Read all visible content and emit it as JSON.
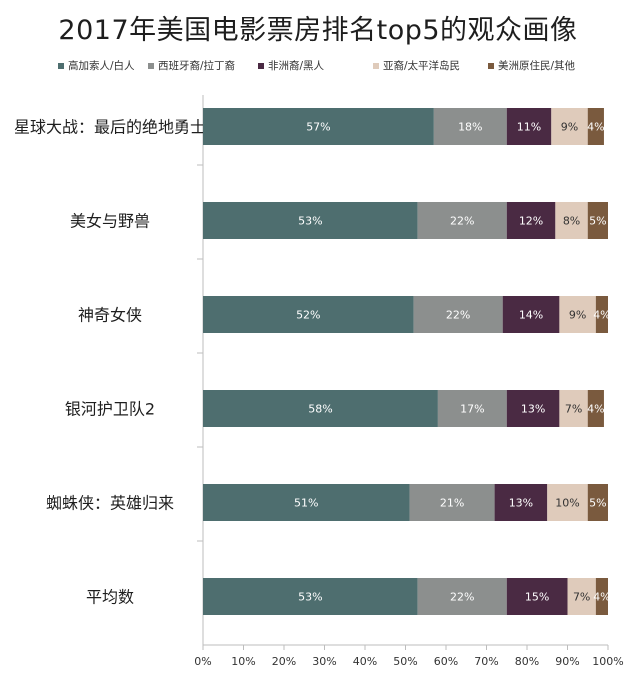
{
  "chart_data": {
    "type": "bar",
    "orientation": "horizontal",
    "stacked": true,
    "title": "2017年美国电影票房排名top5的观众画像",
    "categories": [
      "星球大战：最后的绝地勇士",
      "美女与野兽",
      "神奇女侠",
      "银河护卫队2",
      "蜘蛛侠：英雄归来",
      "平均数"
    ],
    "series": [
      {
        "name": "高加索人/白人",
        "color": "#4e6e6f",
        "values": [
          57,
          53,
          52,
          58,
          51,
          53
        ],
        "labels": [
          "57%",
          "53%",
          "52%",
          "58%",
          "51%",
          "53%"
        ]
      },
      {
        "name": "西班牙裔/拉丁裔",
        "color": "#8c8f8e",
        "values": [
          18,
          22,
          22,
          17,
          21,
          22
        ],
        "labels": [
          "18%",
          "22%",
          "22%",
          "17%",
          "21%",
          "22%"
        ]
      },
      {
        "name": "非洲裔/黑人",
        "color": "#4a2a43",
        "values": [
          11,
          12,
          14,
          13,
          13,
          15
        ],
        "labels": [
          "11%",
          "12%",
          "14%",
          "13%",
          "13%",
          "15%"
        ]
      },
      {
        "name": "亚裔/太平洋岛民",
        "color": "#dfcbbb",
        "values": [
          9,
          8,
          9,
          7,
          10,
          7
        ],
        "labels": [
          "9%",
          "8%",
          "9%",
          "7%",
          "10%",
          "7%"
        ]
      },
      {
        "name": "美洲原住民/其他",
        "color": "#7a5a3e",
        "values": [
          4,
          5,
          4,
          4,
          5,
          4
        ],
        "labels": [
          "4%",
          "5%",
          "4%",
          "4%",
          "5%",
          "4%"
        ]
      }
    ],
    "xlim": [
      0,
      100
    ],
    "xticks": [
      "0%",
      "10%",
      "20%",
      "30%",
      "40%",
      "50%",
      "60%",
      "70%",
      "80%",
      "90%",
      "100%"
    ],
    "legend_position": "top",
    "grid": false
  }
}
